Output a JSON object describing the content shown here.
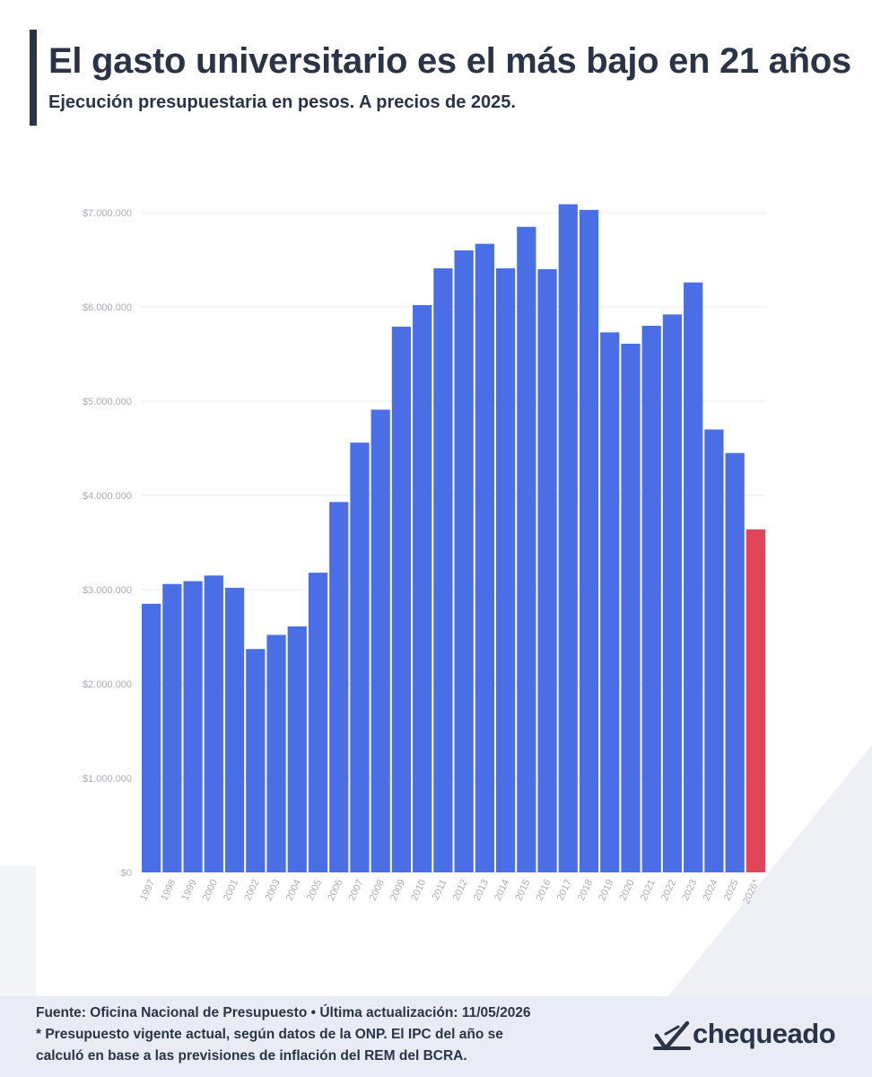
{
  "header": {
    "title": "El gasto universitario es el más bajo en 21 años",
    "subtitle": "Ejecución presupuestaria en pesos. A precios de 2025."
  },
  "chart_data": {
    "type": "bar",
    "categories": [
      "1997",
      "1998",
      "1999",
      "2000",
      "2001",
      "2002",
      "2003",
      "2004",
      "2005",
      "2006",
      "2007",
      "2008",
      "2009",
      "2010",
      "2011",
      "2012",
      "2013",
      "2014",
      "2015",
      "2016",
      "2017",
      "2018",
      "2019",
      "2020",
      "2021",
      "2022",
      "2023",
      "2024",
      "2025",
      "2026*"
    ],
    "values": [
      2850000,
      3060000,
      3090000,
      3150000,
      3020000,
      2370000,
      2520000,
      2610000,
      3180000,
      3930000,
      4560000,
      4910000,
      5790000,
      6020000,
      6410000,
      6600000,
      6670000,
      6410000,
      6850000,
      6400000,
      7090000,
      7030000,
      5730000,
      5610000,
      5800000,
      5920000,
      6260000,
      4700000,
      4450000,
      3640000
    ],
    "highlight_index": 29,
    "colors": {
      "bar": "#4a6ee6",
      "highlight": "#e04656",
      "grid": "#ececf0",
      "tick": "#a8abb5"
    },
    "yticks": [
      "$0",
      "$1.000.000",
      "$2.000.000",
      "$3.000.000",
      "$4.000.000",
      "$5.000.000",
      "$6.000.000",
      "$7.000.000"
    ],
    "ylim": [
      0,
      7400000
    ],
    "grid": true,
    "xlabel": "",
    "ylabel": ""
  },
  "footer": {
    "source": "Fuente: Oficina Nacional de Presupuesto • Última actualización: 11/05/2026",
    "note_line1": "* Presupuesto vigente actual, según datos de la ONP. El IPC del año se",
    "note_line2": "calculó en base a las previsiones de inflación del REM del BCRA.",
    "logo_text": "chequeado",
    "logo_icon": "chequeado-logo-icon"
  }
}
